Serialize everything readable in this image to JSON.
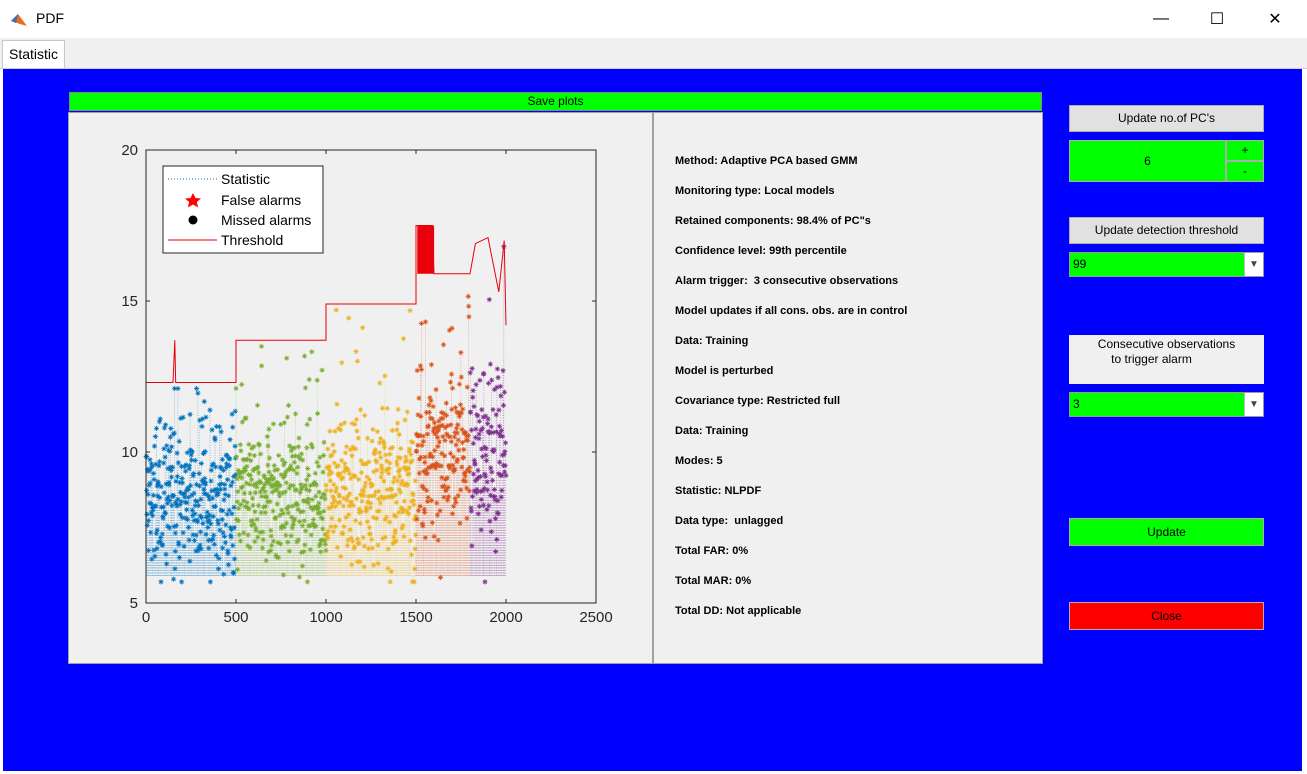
{
  "window": {
    "title": "PDF",
    "minimize": "—",
    "maximize": "☐",
    "close": "✕"
  },
  "tabs": [
    {
      "label": "Statistic"
    }
  ],
  "save_plots_label": "Save plots",
  "info_lines": [
    "Method: Adaptive PCA based GMM",
    "Monitoring type: Local models",
    "Retained components: 98.4% of PC\"s",
    "Confidence level: 99th percentile",
    "Alarm trigger:  3 consecutive observations",
    "Model updates if all cons. obs. are in control",
    "Data: Training",
    "Model is perturbed",
    "Covariance type: Restricted full",
    "Data: Training",
    "Modes: 5",
    "Statistic: NLPDF",
    "Data type:  unlagged",
    "Total FAR: 0%",
    "Total MAR: 0%",
    "Total DD: Not applicable"
  ],
  "controls": {
    "update_pcs_label": "Update no.of PC's",
    "pc_value": "6",
    "plus_label": "+",
    "minus_label": "-",
    "update_threshold_label": "Update detection threshold",
    "threshold_value": "99",
    "consecutive_label_line1": "Consecutive observations",
    "consecutive_label_line2": "to trigger alarm",
    "consecutive_value": "3",
    "update_label": "Update",
    "close_label": "Close",
    "dropdown_arrow": "▼"
  },
  "colors": {
    "background": "#0000ff",
    "accent_green": "#00ff00",
    "close_red": "#ff0000",
    "series": [
      "#0072bd",
      "#77ac30",
      "#edb120",
      "#d95319",
      "#7e2f8e"
    ],
    "threshold": "#e8000b"
  },
  "chart_data": {
    "type": "scatter",
    "xlim": [
      0,
      2500
    ],
    "ylim": [
      5,
      20
    ],
    "xticks": [
      "0",
      "500",
      "1000",
      "1500",
      "2000",
      "2500"
    ],
    "yticks": [
      "5",
      "10",
      "15",
      "20"
    ],
    "legend": [
      "Statistic",
      "False alarms",
      "Missed alarms",
      "Threshold"
    ],
    "legend_position": "top-left",
    "segments": [
      {
        "x_range": [
          0,
          500
        ],
        "mean": 8.5,
        "spread": 1.6,
        "threshold": 12.3
      },
      {
        "x_range": [
          500,
          1000
        ],
        "mean": 8.6,
        "spread": 1.5,
        "threshold": 13.7
      },
      {
        "x_range": [
          1000,
          1500
        ],
        "mean": 8.8,
        "spread": 1.6,
        "threshold": 14.9
      },
      {
        "x_range": [
          1500,
          1800
        ],
        "mean": 10.2,
        "spread": 1.9,
        "threshold": 15.9
      },
      {
        "x_range": [
          1800,
          2000
        ],
        "mean": 9.8,
        "spread": 1.9,
        "threshold": 17.0
      }
    ],
    "threshold_steps": [
      [
        0,
        12.3
      ],
      [
        150,
        12.3
      ],
      [
        160,
        13.7
      ],
      [
        165,
        12.3
      ],
      [
        500,
        12.3
      ],
      [
        500,
        13.7
      ],
      [
        1000,
        13.7
      ],
      [
        1000,
        14.9
      ],
      [
        1500,
        14.9
      ],
      [
        1500,
        17.5
      ],
      [
        1590,
        17.5
      ],
      [
        1600,
        15.9
      ],
      [
        1800,
        15.9
      ],
      [
        1830,
        16.9
      ],
      [
        1900,
        17.1
      ],
      [
        1960,
        15.3
      ],
      [
        1990,
        17.0
      ],
      [
        2000,
        14.2
      ]
    ],
    "grid": false
  }
}
